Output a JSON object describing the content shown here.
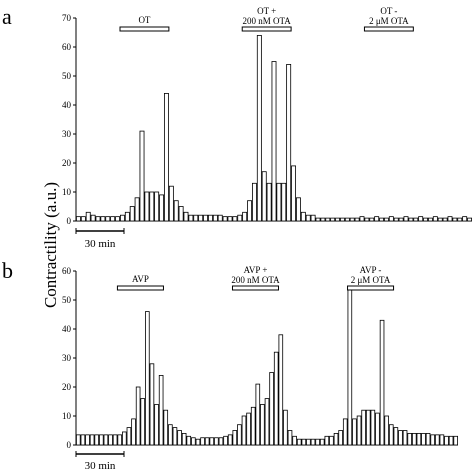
{
  "chart_data": [
    {
      "panel": "a",
      "type": "bar",
      "ylabel": "Contractility (a.u.)",
      "ylim": [
        0,
        70
      ],
      "yticks": [
        0,
        10,
        20,
        30,
        40,
        50,
        60,
        70
      ],
      "scale_bar": "30 min",
      "treatments": [
        {
          "line1": "OT",
          "line2": "",
          "start": 9,
          "end": 19
        },
        {
          "line1": "OT +",
          "line2": "200 nM OTA",
          "start": 34,
          "end": 44
        },
        {
          "line1": "OT -",
          "line2": "2 μM OTA",
          "start": 59,
          "end": 69
        }
      ],
      "values": [
        1.5,
        1.5,
        3,
        2,
        1.5,
        1.5,
        1.5,
        1.5,
        1.5,
        2,
        3,
        5,
        8,
        31,
        10,
        10,
        10,
        9,
        44,
        12,
        7,
        5,
        3,
        2,
        2,
        2,
        2,
        2,
        2,
        2,
        1.5,
        1.5,
        1.5,
        2,
        3,
        7,
        13,
        64,
        17,
        13,
        55,
        13,
        13,
        54,
        19,
        8,
        3,
        2,
        2,
        1,
        1,
        1,
        1,
        1,
        1,
        1,
        1,
        1,
        1.5,
        1,
        1,
        1.5,
        1,
        1,
        1.5,
        1,
        1,
        1.5,
        1,
        1,
        1.5,
        1,
        1,
        1.5,
        1,
        1,
        1.5,
        1,
        1,
        1.5,
        1
      ]
    },
    {
      "panel": "b",
      "type": "bar",
      "ylabel": "Contractility (a.u.)",
      "ylim": [
        0,
        60
      ],
      "yticks": [
        0,
        10,
        20,
        30,
        40,
        50,
        60
      ],
      "scale_bar": "30 min",
      "treatments": [
        {
          "line1": "AVP",
          "line2": "",
          "start": 9,
          "end": 19
        },
        {
          "line1": "AVP +",
          "line2": "200 nM OTA",
          "start": 34,
          "end": 44
        },
        {
          "line1": "AVP -",
          "line2": "2 μM OTA",
          "start": 59,
          "end": 69
        }
      ],
      "values": [
        3.5,
        3.5,
        3.5,
        3.5,
        3.5,
        3.5,
        3.5,
        3.5,
        3.5,
        3.5,
        4.5,
        6,
        9,
        20,
        16,
        46,
        28,
        14,
        24,
        12,
        7,
        6,
        5,
        4,
        3,
        2.5,
        2,
        2.5,
        2.5,
        2.5,
        2.5,
        2.5,
        3,
        3.5,
        5,
        7,
        10,
        11,
        13,
        21,
        14,
        16,
        25,
        32,
        38,
        12,
        5,
        3,
        2,
        2,
        2,
        2,
        2,
        2,
        3,
        3,
        4,
        5,
        9,
        54,
        9,
        10,
        12,
        12,
        12,
        11,
        43,
        10,
        7,
        6,
        5,
        5,
        4,
        4,
        4,
        4,
        4,
        3.5,
        3.5,
        3.5,
        3,
        3,
        3
      ]
    }
  ]
}
